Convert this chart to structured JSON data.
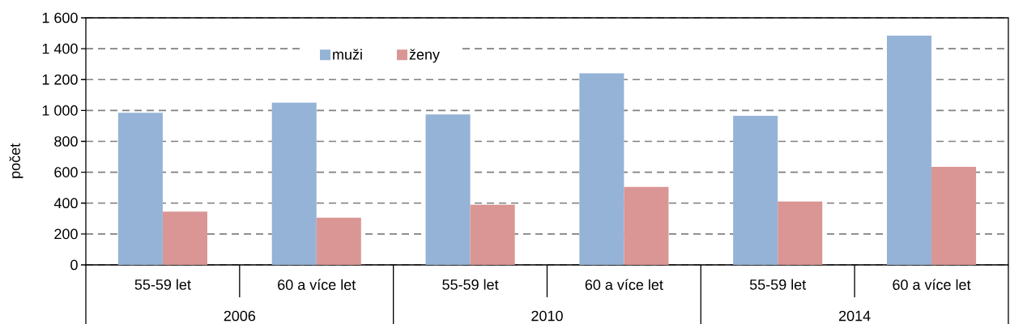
{
  "chart_data": {
    "type": "bar",
    "ylabel": "počet",
    "categories": [
      "55-59 let",
      "60 a více let",
      "55-59 let",
      "60 a více let",
      "55-59 let",
      "60 a více let"
    ],
    "series": [
      {
        "name": "muži",
        "color": "#95b3d7",
        "values": [
          985,
          1050,
          975,
          1240,
          965,
          1485
        ]
      },
      {
        "name": "ženy",
        "color": "#d99694",
        "values": [
          345,
          305,
          390,
          505,
          410,
          635
        ]
      }
    ],
    "ylim": [
      0,
      1600
    ],
    "yticks": [
      0,
      200,
      400,
      600,
      800,
      {
        "value": 1000,
        "label": "1 000"
      },
      {
        "value": 1200,
        "label": "1 200"
      },
      {
        "value": 1400,
        "label": "1 400"
      },
      {
        "value": 1600,
        "label": "1 600"
      }
    ],
    "grid": "y",
    "legend": "top",
    "annotations": [
      "2006",
      "2010",
      "2014"
    ]
  }
}
